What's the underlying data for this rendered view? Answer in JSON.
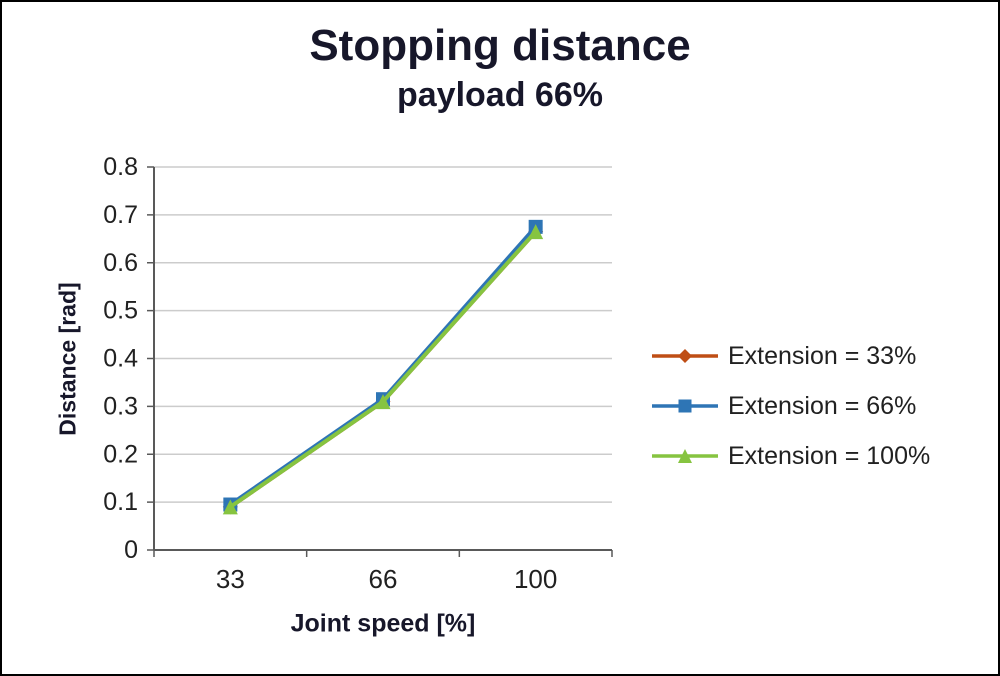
{
  "title": "Stopping distance",
  "subtitle": "payload 66%",
  "chart_data": {
    "type": "line",
    "categories": [
      33,
      66,
      100
    ],
    "x_tick_labels": [
      "33",
      "66",
      "100"
    ],
    "series": [
      {
        "name": "Extension = 33%",
        "values": [
          0.09,
          0.31,
          0.665
        ],
        "color": "#bf4e15",
        "marker": "diamond"
      },
      {
        "name": "Extension = 66%",
        "values": [
          0.095,
          0.315,
          0.675
        ],
        "color": "#2e75b5",
        "marker": "square"
      },
      {
        "name": "Extension = 100%",
        "values": [
          0.09,
          0.31,
          0.665
        ],
        "color": "#86c440",
        "marker": "triangle"
      }
    ],
    "title": "Stopping distance",
    "subtitle": "payload 66%",
    "xlabel": "Joint speed [%]",
    "ylabel": "Distance [rad]",
    "ylim": [
      0,
      0.8
    ],
    "ytick_step": 0.1,
    "grid": true,
    "legend_position": "right"
  },
  "colors": {
    "grid": "#cccccc",
    "axis": "#595959",
    "text": "#212121",
    "title_text": "#17172a"
  }
}
